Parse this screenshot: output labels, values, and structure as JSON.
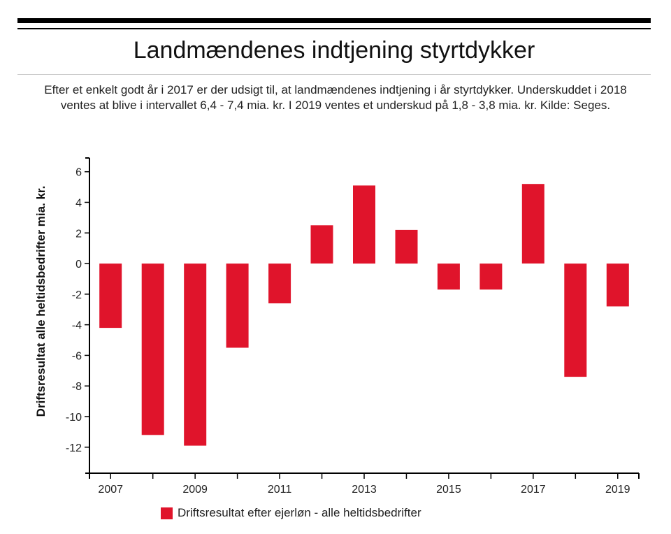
{
  "header": {
    "title": "Landmændenes indtjening styrtdykker",
    "subtitle": "Efter et enkelt godt år i 2017 er der udsigt til, at landmændenes indtjening i år styrtdykker. Underskuddet i 2018 ventes at blive i intervallet 6,4 - 7,4 mia. kr. I 2019 ventes et underskud på 1,8 - 3,8 mia. kr. Kilde: Seges."
  },
  "colors": {
    "bar": "#e0142b",
    "axis": "#000000"
  },
  "chart_data": {
    "type": "bar",
    "title": "Landmændenes indtjening styrtdykker",
    "xlabel": "",
    "ylabel": "Driftsresultat alle heltidsbedrifter mia. kr.",
    "categories": [
      "2007",
      "2008",
      "2009",
      "2010",
      "2011",
      "2012",
      "2013",
      "2014",
      "2015",
      "2016",
      "2017",
      "2018",
      "2019"
    ],
    "x_tick_labels": [
      "2007",
      "",
      "2009",
      "",
      "2011",
      "",
      "2013",
      "",
      "2015",
      "",
      "2017",
      "",
      "2019"
    ],
    "series": [
      {
        "name": "Driftsresultat efter ejerløn - alle heltidsbedrifter",
        "values": [
          -4.2,
          -11.2,
          -11.9,
          -5.5,
          -2.6,
          2.5,
          5.1,
          2.2,
          -1.7,
          -1.7,
          5.2,
          -7.4,
          -2.8
        ]
      }
    ],
    "y_ticks": [
      6,
      4,
      2,
      0,
      -2,
      -4,
      -6,
      -8,
      -10,
      -12
    ],
    "y_tick_labels": [
      "6",
      "4",
      "2",
      "0",
      "-2",
      "-4",
      "-6",
      "-8",
      "-10",
      "-12"
    ],
    "ylim": [
      -13.7,
      6.9
    ],
    "grid": false,
    "legend_position": "bottom"
  }
}
